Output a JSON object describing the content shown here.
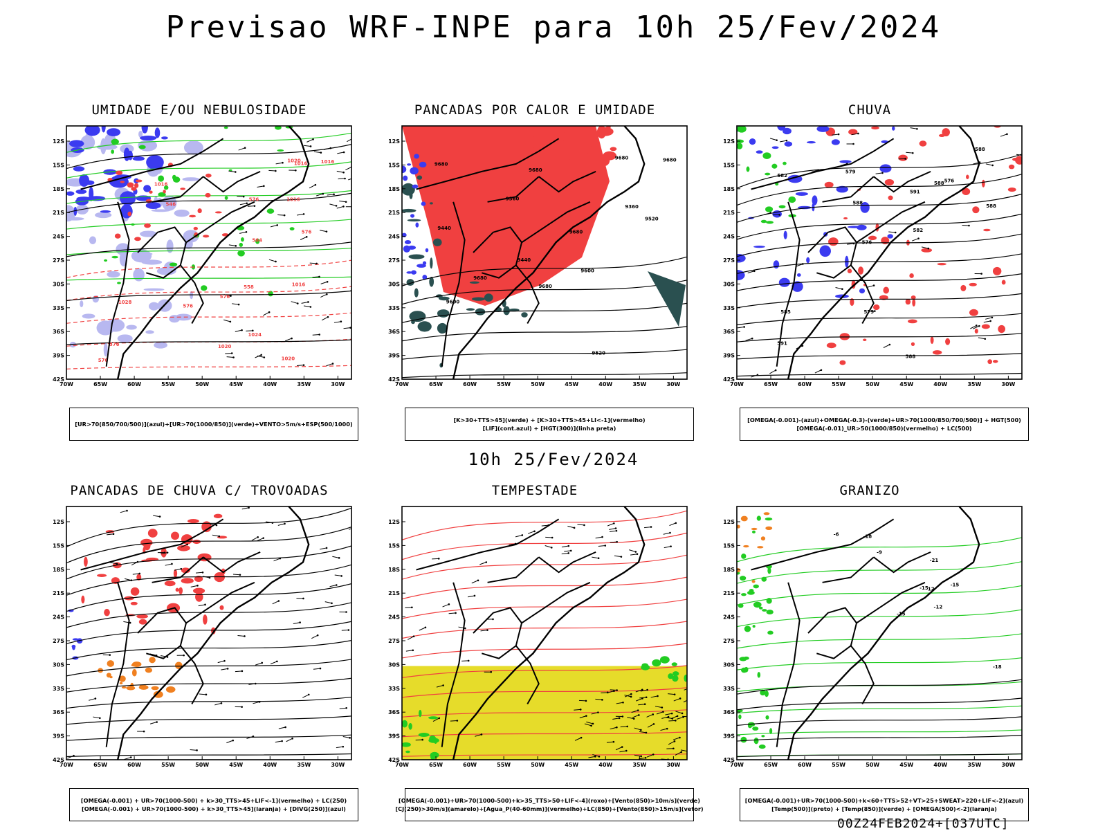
{
  "title": "Previsao WRF-INPE  para 10h 25/Fev/2024",
  "mid_date": "10h 25/Fev/2024",
  "footer": "00Z24FEB2024+[037UTC]",
  "lat_labels": [
    "12S",
    "15S",
    "18S",
    "21S",
    "24S",
    "27S",
    "30S",
    "33S",
    "36S",
    "39S",
    "42S"
  ],
  "lon_labels": [
    "70W",
    "65W",
    "60W",
    "55W",
    "50W",
    "45W",
    "40W",
    "35W",
    "30W"
  ],
  "colors": {
    "red": "#f04040",
    "blue": "#3b3bf0",
    "lightblue": "#b8b8f0",
    "green": "#22cc22",
    "yellow": "#e6dc2a",
    "darkteal": "#2a5050",
    "orange": "#f08020"
  },
  "panels": [
    {
      "title": "UMIDADE E/OU NEBULOSIDADE",
      "style": "umidade",
      "legend": [
        "[UR>70(850/700/500)](azul)+[UR>70(1000/850)](verde)+VENTO>5m/s+ESP(500/1000)"
      ],
      "contour_labels": [
        "1016",
        "1016",
        "1016",
        "1016",
        "1016",
        "1020",
        "1020",
        "1020",
        "1024",
        "1028",
        "576",
        "576",
        "576",
        "576",
        "576",
        "576",
        "564",
        "558",
        "546"
      ]
    },
    {
      "title": "PANCADAS POR CALOR E UMIDADE",
      "style": "pancadas_calor",
      "legend": [
        "[K>30+TTS>45](verde)  +  [K>30+TTS>45+LI<-1](vermelho)",
        "[LIF](cont.azul)  +  [HGT(300)](linha preta)"
      ],
      "contour_labels": [
        "9680",
        "9680",
        "9680",
        "9680",
        "9680",
        "9680",
        "9680",
        "9600",
        "9600",
        "9520",
        "9520",
        "9440",
        "9440",
        "9360",
        "9360"
      ]
    },
    {
      "title": "CHUVA",
      "style": "chuva",
      "legend": [
        "[OMEGA(-0.001)-(azul)+OMEGA(-0.3)-(verde)+UR>70(1000/850/700/500)]  +  HGT(500)",
        "[OMEGA(-0.01)_UR>50(1000/850)(vermelho)  +  LC(500)"
      ],
      "contour_labels": [
        "588",
        "588",
        "588",
        "588",
        "591",
        "591",
        "588",
        "585",
        "582",
        "579",
        "576",
        "582",
        "579",
        "576"
      ]
    },
    {
      "title": "PANCADAS DE CHUVA C/ TROVOADAS",
      "style": "trovoadas",
      "legend": [
        "[OMEGA(-0.001)  +  UR>70(1000-500)  +  k>30_TTS>45+LIF<-1](vermelho)  +  LC(250)",
        "[OMEGA(-0.001)  +  UR>70(1000-500)  +  k>30_TTS>45](laranja)  +  [DIVG(250)](azul)"
      ],
      "contour_labels": []
    },
    {
      "title": "TEMPESTADE",
      "style": "tempestade",
      "legend": [
        "[OMEGA(-0.001)+UR>70(1000-500)+k>35_TTS>50+LIF<-4](roxo)+[Vento(850)>10m/s](verde)",
        "[CJ(250)>30m/s](amarelo)+[Agua_P(40-60mm)](vermelho)+LC(850)+[Vento(850)>15m/s](vetor)"
      ],
      "contour_labels": []
    },
    {
      "title": "GRANIZO",
      "style": "granizo",
      "legend": [
        "[OMEGA(-0.001)+UR>70(1000-500)+k<60+TTS>52+VT>25+SWEAT>220+LIF<-2](azul)",
        "[Temp(500)](preto)  +  [Temp(850)](verde)  +  [OMEGA(500)<-2](laranja)"
      ],
      "contour_labels": [
        "-12",
        "-15",
        "-18",
        "-21",
        "-15",
        "-18",
        "-15",
        "-12",
        "-9",
        "-6"
      ]
    }
  ]
}
